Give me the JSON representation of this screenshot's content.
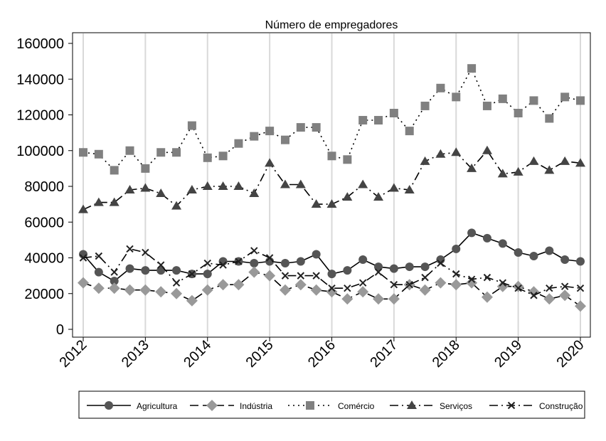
{
  "chart_data": {
    "type": "line",
    "title": "Número de empregadores",
    "xlabel": "",
    "ylabel": "",
    "xlim": [
      2012,
      2020
    ],
    "ylim": [
      0,
      160000
    ],
    "x_ticks": [
      2012,
      2013,
      2014,
      2015,
      2016,
      2017,
      2018,
      2019,
      2020
    ],
    "x_tick_labels": [
      "2012",
      "2013",
      "2014",
      "2015",
      "2016",
      "2017",
      "2018",
      "2019",
      "2020"
    ],
    "y_ticks": [
      0,
      20000,
      40000,
      60000,
      80000,
      100000,
      120000,
      140000,
      160000
    ],
    "y_tick_labels": [
      "0",
      "20000",
      "40000",
      "60000",
      "80000",
      "100000",
      "120000",
      "140000",
      "160000"
    ],
    "grid": "vertical",
    "legend_position": "bottom",
    "x": [
      2012.0,
      2012.25,
      2012.5,
      2012.75,
      2013.0,
      2013.25,
      2013.5,
      2013.75,
      2014.0,
      2014.25,
      2014.5,
      2014.75,
      2015.0,
      2015.25,
      2015.5,
      2015.75,
      2016.0,
      2016.25,
      2016.5,
      2016.75,
      2017.0,
      2017.25,
      2017.5,
      2017.75,
      2018.0,
      2018.25,
      2018.5,
      2018.75,
      2019.0,
      2019.25,
      2019.5,
      2019.75,
      2020.0
    ],
    "series": [
      {
        "name": "Agricultura",
        "marker": "circle",
        "dash": "solid",
        "color": "#555555",
        "values": [
          42000,
          32000,
          27000,
          34000,
          33000,
          33000,
          33000,
          31000,
          31000,
          38000,
          38000,
          37000,
          38000,
          37000,
          38000,
          42000,
          31000,
          33000,
          39000,
          35000,
          34000,
          35000,
          35000,
          39000,
          45000,
          54000,
          51000,
          48000,
          43000,
          41000,
          44000,
          39000,
          38000
        ]
      },
      {
        "name": "Indústria",
        "marker": "diamond",
        "dash": "longdash",
        "color": "#999999",
        "values": [
          26000,
          23000,
          23000,
          22000,
          22000,
          21000,
          20000,
          16000,
          22000,
          25000,
          25000,
          32000,
          30000,
          22000,
          25000,
          22000,
          21000,
          17000,
          21000,
          17000,
          17000,
          25000,
          22000,
          26000,
          25000,
          26000,
          18000,
          24000,
          24000,
          21000,
          17000,
          19000,
          13000
        ]
      },
      {
        "name": "Comércio",
        "marker": "square",
        "dash": "dot",
        "color": "#808080",
        "values": [
          99000,
          98000,
          89000,
          100000,
          90000,
          99000,
          99000,
          114000,
          96000,
          97000,
          104000,
          108000,
          111000,
          106000,
          113000,
          113000,
          97000,
          95000,
          117000,
          117000,
          121000,
          111000,
          125000,
          135000,
          130000,
          146000,
          125000,
          129000,
          121000,
          128000,
          118000,
          130000,
          128000
        ]
      },
      {
        "name": "Serviços",
        "marker": "triangle",
        "dash": "dashdot",
        "color": "#444444",
        "values": [
          67000,
          71000,
          71000,
          78000,
          79000,
          76000,
          69000,
          78000,
          80000,
          80000,
          80000,
          76000,
          93000,
          81000,
          81000,
          70000,
          70000,
          74000,
          81000,
          74000,
          79000,
          78000,
          94000,
          98000,
          99000,
          90000,
          100000,
          87000,
          88000,
          94000,
          89000,
          94000,
          93000
        ]
      },
      {
        "name": "Construção",
        "marker": "x",
        "dash": "dashdot",
        "color": "#222222",
        "values": [
          40000,
          41000,
          32000,
          45000,
          43000,
          36000,
          26000,
          31000,
          37000,
          36000,
          38000,
          44000,
          40000,
          30000,
          30000,
          30000,
          23000,
          23000,
          26000,
          32000,
          25000,
          25000,
          29000,
          37000,
          31000,
          28000,
          29000,
          26000,
          23000,
          19000,
          23000,
          24000,
          23000
        ]
      }
    ]
  }
}
